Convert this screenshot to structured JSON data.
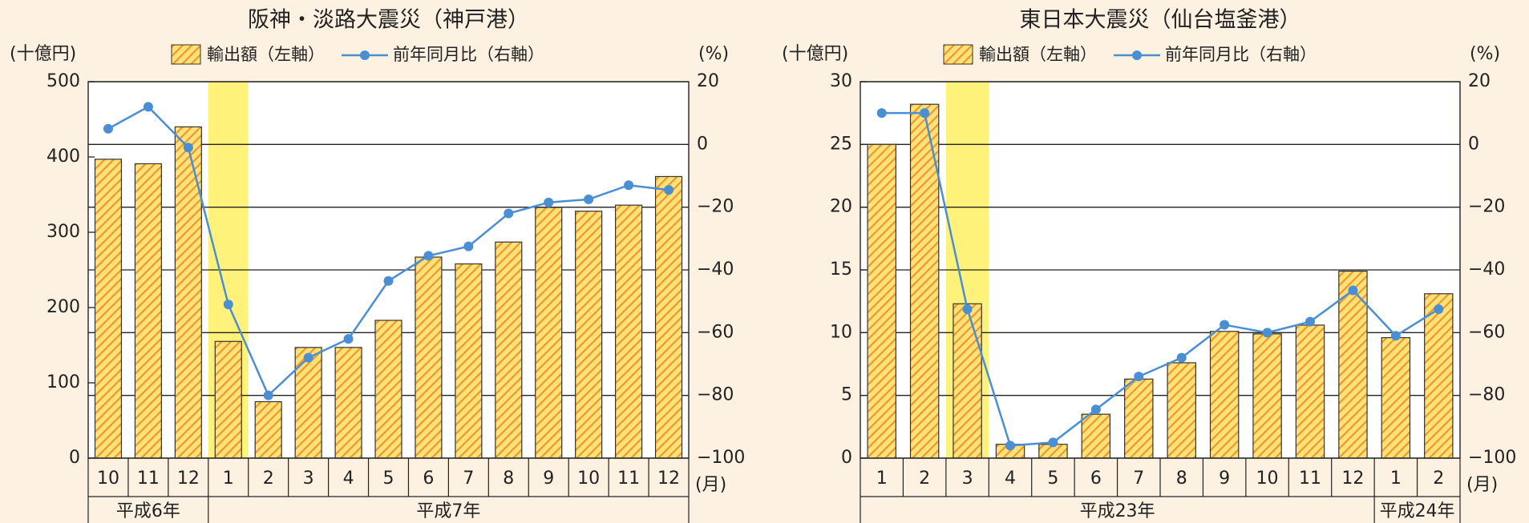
{
  "chart_data": [
    {
      "type": "bar_line",
      "title": "阪神・淡路大震災（神戸港）",
      "ylabel": "(十億円)",
      "y2label": "(%)",
      "xlabel": "(月)",
      "categories": [
        "10",
        "11",
        "12",
        "1",
        "2",
        "3",
        "4",
        "5",
        "6",
        "7",
        "8",
        "9",
        "10",
        "11",
        "12"
      ],
      "groups": [
        {
          "label": "平成6年",
          "span": 3
        },
        {
          "label": "平成7年",
          "span": 12
        }
      ],
      "highlight_index": 3,
      "highlight_color": "#fff27a",
      "series": [
        {
          "name": "輸出額（左軸）",
          "type": "bar",
          "color": "#fde27a",
          "stripe_color": "#f0962a",
          "values": [
            397,
            391,
            440,
            155,
            75,
            147,
            147,
            183,
            267,
            258,
            287,
            333,
            328,
            336,
            374
          ]
        },
        {
          "name": "前年同月比（右軸）",
          "type": "line",
          "axis": "y2",
          "color": "#4a8fd4",
          "values": [
            5,
            12,
            -1,
            -51,
            -80,
            -68,
            -62,
            -43.5,
            -35.5,
            -32.5,
            -22,
            -18.5,
            -17.5,
            -13,
            -14.5
          ]
        }
      ],
      "ylim": [
        0,
        500
      ],
      "yticks": [
        0,
        100,
        200,
        300,
        400,
        500
      ],
      "y2lim": [
        -100,
        20
      ],
      "y2ticks": [
        {
          "value": -100,
          "label": "−100"
        },
        {
          "value": -80,
          "label": "−80"
        },
        {
          "value": -60,
          "label": "−60"
        },
        {
          "value": -40,
          "label": "−40"
        },
        {
          "value": -20,
          "label": "−20"
        },
        0,
        20
      ],
      "grid": "y2"
    },
    {
      "type": "bar_line",
      "title": "東日本大震災（仙台塩釜港）",
      "ylabel": "(十億円)",
      "y2label": "(%)",
      "xlabel": "(月)",
      "categories": [
        "1",
        "2",
        "3",
        "4",
        "5",
        "6",
        "7",
        "8",
        "9",
        "10",
        "11",
        "12",
        "1",
        "2"
      ],
      "groups": [
        {
          "label": "平成23年",
          "span": 12
        },
        {
          "label": "平成24年",
          "span": 2
        }
      ],
      "highlight_index": 2,
      "highlight_color": "#fff27a",
      "series": [
        {
          "name": "輸出額（左軸）",
          "type": "bar",
          "color": "#fde27a",
          "stripe_color": "#f0962a",
          "values": [
            25,
            28.2,
            12.3,
            1.1,
            1.1,
            3.5,
            6.3,
            7.6,
            10.1,
            9.9,
            10.6,
            14.9,
            9.6,
            13.1
          ]
        },
        {
          "name": "前年同月比（右軸）",
          "type": "line",
          "axis": "y2",
          "color": "#4a8fd4",
          "values": [
            10,
            10,
            -52.5,
            -96,
            -95,
            -84.5,
            -74,
            -68,
            -57.5,
            -60,
            -56.5,
            -46.5,
            -61,
            -52.5
          ]
        }
      ],
      "ylim": [
        0,
        30
      ],
      "yticks": [
        0,
        5,
        10,
        15,
        20,
        25,
        30
      ],
      "y2lim": [
        -100,
        20
      ],
      "y2ticks": [
        {
          "value": -100,
          "label": "−100"
        },
        {
          "value": -80,
          "label": "−80"
        },
        {
          "value": -60,
          "label": "−60"
        },
        {
          "value": -40,
          "label": "−40"
        },
        {
          "value": -20,
          "label": "−20"
        },
        0,
        20
      ],
      "grid": "y2"
    }
  ]
}
